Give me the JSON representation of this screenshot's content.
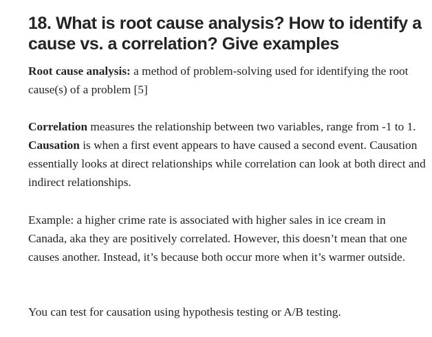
{
  "heading": "18. What is root cause analysis? How to identify a cause vs. a correlation? Give examples",
  "root_cause": {
    "term": "Root cause analysis:",
    "definition": " a method of problem-solving used for identifying the root cause(s) of a problem [5]"
  },
  "correlation": {
    "term": "Correlation",
    "definition": " measures the relationship between two variables, range from -1 to 1. ",
    "causation_term": "Causation",
    "causation_definition": " is when a first event appears to have caused a second event. Causation essentially looks at direct relationships while correlation can look at both direct and indirect relationships."
  },
  "example": "Example: a higher crime rate is associated with higher sales in ice cream in Canada, aka they are positively correlated. However, this doesn’t mean that one causes another. Instead, it’s because both occur more when it’s warmer outside.",
  "closing": "You can test for causation using hypothesis testing or A/B testing."
}
